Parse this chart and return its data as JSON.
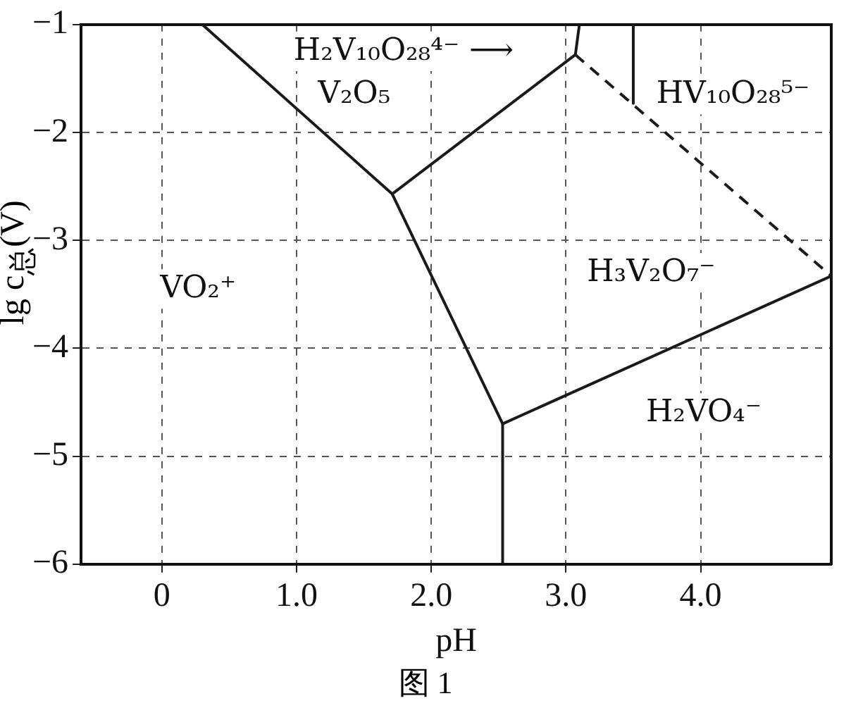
{
  "chart_data": {
    "type": "line",
    "xlabel": "pH",
    "ylabel": "lg c$_{总}$(V)",
    "xlim": [
      -0.6,
      4.97
    ],
    "ylim": [
      -6,
      -1
    ],
    "xticks": [
      0,
      {
        "value": 1,
        "label": "1.0"
      },
      {
        "value": 2,
        "label": "2.0"
      },
      {
        "value": 3,
        "label": "3.0"
      },
      {
        "value": 4,
        "label": "4.0"
      }
    ],
    "yticks": [
      -6,
      -5,
      -4,
      -3,
      -2,
      -1
    ],
    "grid": true,
    "legend": false,
    "marker": "none",
    "series": [
      {
        "color": "#1a1a1a",
        "line_style": "solid",
        "x": [
          0.3,
          1.71,
          2.53,
          4.97
        ],
        "values": [
          -1,
          -2.57,
          -4.7,
          -3.33
        ]
      },
      {
        "color": "#1a1a1a",
        "line_style": "solid",
        "x": [
          1.71,
          3.07,
          3.1
        ],
        "values": [
          -2.57,
          -1.28,
          -1
        ]
      },
      {
        "color": "#1a1a1a",
        "line_style": "dashed",
        "x": [
          3.07,
          4.97
        ],
        "values": [
          -1.28,
          -3.33
        ]
      },
      {
        "color": "#1a1a1a",
        "line_style": "solid",
        "x": [
          3.5,
          3.5
        ],
        "values": [
          -1,
          -1.73
        ]
      },
      {
        "color": "#1a1a1a",
        "line_style": "solid",
        "x": [
          2.53,
          2.53
        ],
        "values": [
          -4.7,
          -6
        ]
      }
    ],
    "annotations": [
      "VO₂⁺",
      "V₂O₅",
      "H₂V₁₀O₂₈⁴⁻ ⟶",
      "HV₁₀O₂₈⁵⁻",
      "H₃V₂O₇⁻",
      "H₂VO₄⁻",
      "图 1"
    ]
  }
}
